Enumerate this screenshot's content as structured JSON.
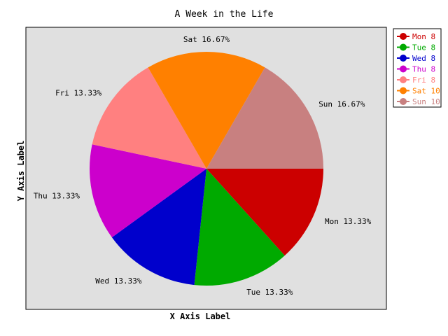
{
  "chart_data": {
    "type": "pie",
    "title": "A Week in the Life",
    "xlabel": "X Axis Label",
    "ylabel": "Y Axis Label",
    "legend_position": "right",
    "plot_background": "#e0e0e0",
    "slices": [
      {
        "label": "Mon",
        "value": 8,
        "percent_label": "Mon 13.33%",
        "legend_label": "Mon 8",
        "color": "#cc0000"
      },
      {
        "label": "Tue",
        "value": 8,
        "percent_label": "Tue 13.33%",
        "legend_label": "Tue 8",
        "color": "#00aa00"
      },
      {
        "label": "Wed",
        "value": 8,
        "percent_label": "Wed 13.33%",
        "legend_label": "Wed 8",
        "color": "#0000cc"
      },
      {
        "label": "Thu",
        "value": 8,
        "percent_label": "Thu 13.33%",
        "legend_label": "Thu 8",
        "color": "#cc00cc"
      },
      {
        "label": "Fri",
        "value": 8,
        "percent_label": "Fri 13.33%",
        "legend_label": "Fri 8",
        "color": "#ff8080"
      },
      {
        "label": "Sat",
        "value": 10,
        "percent_label": "Sat 16.67%",
        "legend_label": "Sat 10",
        "color": "#ff8000"
      },
      {
        "label": "Sun",
        "value": 10,
        "percent_label": "Sun 16.67%",
        "legend_label": "Sun 10",
        "color": "#c88080"
      }
    ]
  }
}
